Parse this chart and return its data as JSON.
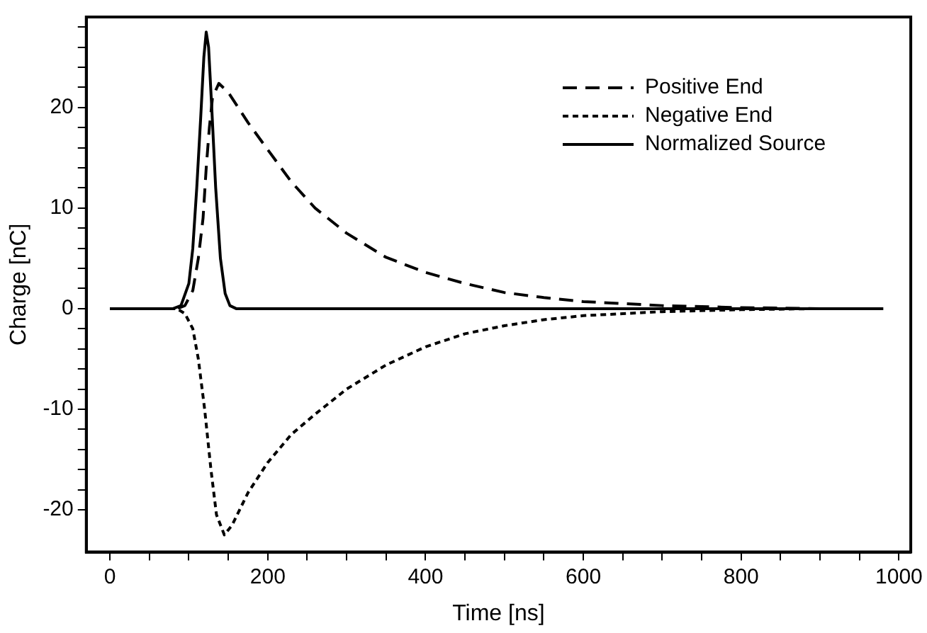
{
  "chart_data": {
    "type": "line",
    "xlabel": "Time [ns]",
    "ylabel": "Charge [nC]",
    "xlim": [
      -30,
      1015
    ],
    "ylim": [
      -24.2,
      29
    ],
    "xticks": [
      0,
      {
        "value": 50,
        "label": null
      },
      {
        "value": 100,
        "label": null
      },
      {
        "value": 150,
        "label": null
      },
      200,
      {
        "value": 250,
        "label": null
      },
      {
        "value": 300,
        "label": null
      },
      {
        "value": 350,
        "label": null
      },
      400,
      {
        "value": 450,
        "label": null
      },
      {
        "value": 500,
        "label": null
      },
      {
        "value": 550,
        "label": null
      },
      600,
      {
        "value": 650,
        "label": null
      },
      {
        "value": 700,
        "label": null
      },
      {
        "value": 750,
        "label": null
      },
      800,
      {
        "value": 850,
        "label": null
      },
      {
        "value": 900,
        "label": null
      },
      {
        "value": 950,
        "label": null
      },
      1000
    ],
    "yticks": [
      -20,
      {
        "value": -18,
        "label": null
      },
      {
        "value": -16,
        "label": null
      },
      {
        "value": -14,
        "label": null
      },
      {
        "value": -12,
        "label": null
      },
      -10,
      {
        "value": -8,
        "label": null
      },
      {
        "value": -6,
        "label": null
      },
      {
        "value": -4,
        "label": null
      },
      {
        "value": -2,
        "label": null
      },
      0,
      {
        "value": 2,
        "label": null
      },
      {
        "value": 4,
        "label": null
      },
      {
        "value": 6,
        "label": null
      },
      {
        "value": 8,
        "label": null
      },
      10,
      {
        "value": 12,
        "label": null
      },
      {
        "value": 14,
        "label": null
      },
      {
        "value": 16,
        "label": null
      },
      {
        "value": 18,
        "label": null
      },
      20,
      {
        "value": 22,
        "label": null
      },
      {
        "value": 24,
        "label": null
      },
      {
        "value": 26,
        "label": null
      },
      {
        "value": 28,
        "label": null
      }
    ],
    "grid": false,
    "legend": "top right",
    "marker": "none",
    "series": [
      {
        "name": "Positive End",
        "color": "#000000",
        "line_style": "dashed",
        "x": [
          0,
          85,
          95,
          105,
          112,
          118,
          122,
          126,
          130,
          138,
          150,
          175,
          200,
          230,
          260,
          300,
          350,
          400,
          450,
          500,
          550,
          600,
          650,
          700,
          800,
          900,
          980
        ],
        "values": [
          0,
          0,
          0.3,
          1.8,
          5,
          9,
          14,
          18,
          21,
          22.4,
          21.5,
          18.5,
          15.8,
          12.6,
          10,
          7.5,
          5.1,
          3.6,
          2.5,
          1.6,
          1.1,
          0.7,
          0.5,
          0.3,
          0.1,
          0,
          0
        ]
      },
      {
        "name": "Negative End",
        "color": "#000000",
        "line_style": "dotted",
        "x": [
          0,
          85,
          95,
          105,
          112,
          120,
          128,
          135,
          145,
          155,
          175,
          200,
          230,
          260,
          300,
          350,
          400,
          450,
          500,
          550,
          600,
          650,
          700,
          800,
          900,
          980
        ],
        "values": [
          0,
          0,
          -0.5,
          -2,
          -5,
          -10,
          -16,
          -20.5,
          -22.5,
          -21.5,
          -18.3,
          -15.3,
          -12.5,
          -10.5,
          -8,
          -5.6,
          -3.8,
          -2.5,
          -1.7,
          -1.1,
          -0.7,
          -0.5,
          -0.3,
          -0.1,
          0,
          0
        ]
      },
      {
        "name": "Normalized Source",
        "color": "#000000",
        "line_style": "solid",
        "x": [
          0,
          80,
          90,
          100,
          105,
          110,
          115,
          119,
          122,
          125,
          129,
          134,
          140,
          146,
          152,
          160,
          980
        ],
        "values": [
          0,
          0,
          0.3,
          2.5,
          6,
          12,
          19,
          25,
          27.5,
          26,
          20,
          12,
          5,
          1.5,
          0.3,
          0,
          0
        ]
      }
    ]
  }
}
